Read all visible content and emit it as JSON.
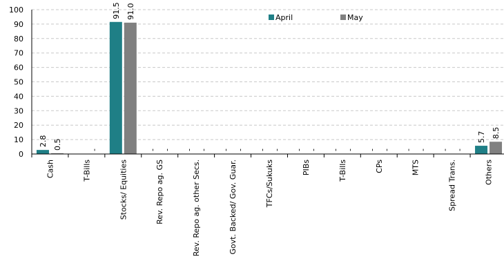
{
  "chart_data": {
    "type": "bar",
    "categories": [
      "Cash",
      "T-Bills",
      "Stocks/ Equities",
      "Rev. Repo ag. GS",
      "Rev. Repo ag. other Secs.",
      "Govt. Backed/ Gov. Guar.",
      "TFCs/Sukuks",
      "PIBs",
      "T-Bills",
      "CPs",
      "MTS",
      "Spread Trans.",
      "Others"
    ],
    "series": [
      {
        "name": "April",
        "color": "#1f7f86",
        "values": [
          2.8,
          0,
          91.5,
          0,
          0,
          0,
          0,
          0,
          0,
          0,
          0,
          0,
          5.7
        ],
        "labels": [
          "2.8",
          "",
          "91.5",
          "-",
          "-",
          "-",
          "-",
          "-",
          "-",
          "-",
          "-",
          "-",
          "5.7"
        ]
      },
      {
        "name": "May",
        "color": "#808080",
        "values": [
          0.5,
          0,
          91.0,
          0,
          0,
          0,
          0,
          0,
          0,
          0,
          0,
          0,
          8.5
        ],
        "labels": [
          "0.5",
          "-",
          "91.0",
          "-",
          "-",
          "-",
          "-",
          "-",
          "-",
          "-",
          "-",
          "-",
          "8.5"
        ]
      }
    ],
    "ylim": [
      0,
      100
    ],
    "yticks": [
      "0",
      "10",
      "20",
      "30",
      "40",
      "50",
      "60",
      "70",
      "80",
      "90",
      "100"
    ],
    "grid": true,
    "legend": "top-right",
    "title": "",
    "xlabel": "",
    "ylabel": ""
  }
}
